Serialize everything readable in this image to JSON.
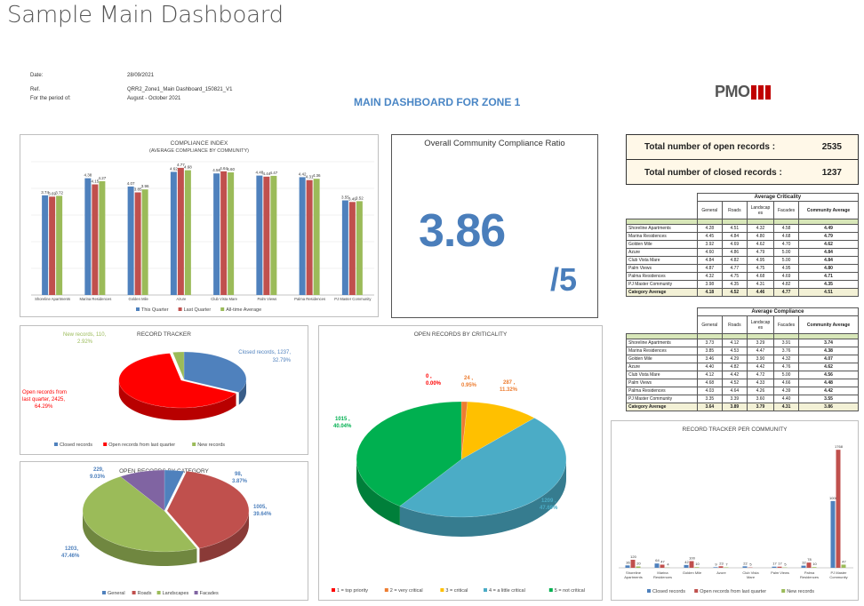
{
  "page_title": "Sample Main Dashboard",
  "meta": {
    "date_label": "Date:",
    "date_value": "28/09/2021",
    "ref_label": "Ref.",
    "ref_value": "QRR2_Zone1_Main Dashboard_150821_V1",
    "period_label": "For the period of:",
    "period_value": "August - October 2021"
  },
  "dashboard_heading": "MAIN DASHBOARD FOR ZONE 1",
  "logo_text": "PMO",
  "colors": {
    "blue": "#4f81bd",
    "red": "#c0504d",
    "green": "#9bbb59",
    "purple": "#8064a2",
    "bright_red": "#ff0000",
    "orange": "#ed7d31",
    "yellow": "#ffc000",
    "teal": "#4bacc6",
    "dark_green": "#00b050",
    "dark_red": "#c00000"
  },
  "ratio": {
    "title": "Overall Community Compliance Ratio",
    "value": "3.86",
    "denominator": "/5"
  },
  "totals": {
    "open_label": "Total number of open records :",
    "open_value": "2535",
    "closed_label": "Total number of closed records :",
    "closed_value": "1237"
  },
  "chart_data": [
    {
      "id": "compliance_index",
      "type": "bar",
      "title": "COMPLIANCE INDEX",
      "subtitle": "(AVERAGE COMPLIANCE BY COMMUNITY)",
      "categories": [
        "Shoreline Apartments",
        "Marina Residences",
        "Golden Mile",
        "Azure",
        "Club Vista Mare",
        "Palm Views",
        "Palma Residences",
        "PJ Master Community"
      ],
      "series": [
        {
          "name": "This Quarter",
          "values": [
            3.74,
            4.38,
            4.07,
            4.62,
            4.56,
            4.48,
            4.42,
            3.55
          ]
        },
        {
          "name": "Last Quarter",
          "values": [
            3.69,
            4.15,
            3.85,
            4.77,
            4.64,
            4.44,
            4.31,
            3.49
          ]
        },
        {
          "name": "All-time Average",
          "values": [
            3.72,
            4.27,
            3.96,
            4.68,
            4.6,
            4.47,
            4.36,
            3.52
          ]
        }
      ],
      "value_labels": [
        [
          "3.74",
          "4.38",
          "4.07",
          "4.62",
          "4.56",
          "4.48",
          "4.42",
          "3.55"
        ],
        [
          "3.69",
          "4.15",
          "3.85",
          "4.77",
          "4.64",
          "4.44",
          "4.31",
          "3.49"
        ],
        [
          "3.72",
          "4.27",
          "3.96",
          "4.68",
          "4.60",
          "4.47",
          "4.36",
          "3.52"
        ]
      ],
      "ylim": [
        0,
        5
      ],
      "grid": true,
      "legend": "bottom"
    },
    {
      "id": "record_tracker",
      "type": "pie",
      "title": "RECORD TRACKER",
      "labels": [
        "Closed records",
        "Open records from last quarter",
        "New records"
      ],
      "values": [
        1237,
        2425,
        110
      ],
      "percents": [
        "32.79%",
        "64.29%",
        "2.92%"
      ],
      "slice_labels": [
        "Closed records, 1237,",
        "Open records from last quarter, 2425,",
        "New records, 110,"
      ],
      "legend": "bottom"
    },
    {
      "id": "open_by_criticality",
      "type": "pie",
      "title": "OPEN RECORDS BY CRITICALITY",
      "labels": [
        "1 = top priority",
        "2 = very critical",
        "3 = critical",
        "4 = a little critical",
        "5 = not critical"
      ],
      "values": [
        0,
        24,
        287,
        1209,
        1015
      ],
      "percents": [
        "0.00%",
        "0.95%",
        "11.32%",
        "47.69%",
        "40.04%"
      ],
      "legend": "bottom"
    },
    {
      "id": "open_by_category",
      "type": "pie",
      "title": "OPEN RECORDS BY CATEGORY",
      "labels": [
        "General",
        "Roads",
        "Landscapes",
        "Facades"
      ],
      "values": [
        98,
        1005,
        1203,
        229
      ],
      "percents": [
        "3.87%",
        "39.64%",
        "47.46%",
        "9.03%"
      ],
      "legend": "bottom"
    },
    {
      "id": "tracker_per_community",
      "type": "bar",
      "title": "RECORD TRACKER PER COMMUNITY",
      "categories": [
        "Shoreline Apartments",
        "Marina Residences",
        "Golden Mile",
        "Azure",
        "Club Vista Mare",
        "Palm Views",
        "Palma Residences",
        "PJ Master Community"
      ],
      "category_lines": [
        [
          "Shoreline",
          "Apartments"
        ],
        [
          "Marina",
          "Residences"
        ],
        [
          "Golden Mile"
        ],
        [
          "Azure"
        ],
        [
          "Club Vista",
          "Mare"
        ],
        [
          "Palm Views"
        ],
        [
          "Palma",
          "Residences"
        ],
        [
          "PJ Master",
          "Community"
        ]
      ],
      "series": [
        {
          "name": "Closed records",
          "values": [
            36,
            64,
            42,
            9,
            22,
            17,
            32,
            1000
          ]
        },
        {
          "name": "Open records from last quarter",
          "values": [
            120,
            47,
            100,
            23,
            5,
            17,
            78,
            1768
          ]
        },
        {
          "name": "New records",
          "values": [
            20,
            4,
            10,
            7,
            0,
            5,
            10,
            47
          ]
        }
      ],
      "value_labels": [
        [
          "36",
          "64",
          "42",
          "9",
          "22",
          "17",
          "32",
          "1000"
        ],
        [
          "120",
          "47",
          "100",
          "23",
          "5",
          "17",
          "78",
          "1768"
        ],
        [
          "20",
          "4",
          "10",
          "7",
          "",
          "5",
          "10",
          "47"
        ]
      ],
      "legend": "bottom"
    }
  ],
  "criticality_table": {
    "title": "Average Criticality",
    "columns": [
      "General",
      "Roads",
      "Landscap es",
      "Facades",
      "Community Average"
    ],
    "rows": [
      {
        "name": "Shoreline Apartments",
        "values": [
          "4.28",
          "4.51",
          "4.32",
          "4.58",
          "4.49"
        ]
      },
      {
        "name": "Marina Residences",
        "values": [
          "4.45",
          "4.84",
          "4.80",
          "4.68",
          "4.79"
        ]
      },
      {
        "name": "Golden Mile",
        "values": [
          "3.92",
          "4.69",
          "4.62",
          "4.70",
          "4.62"
        ]
      },
      {
        "name": "Azure",
        "values": [
          "4.60",
          "4.86",
          "4.79",
          "5.00",
          "4.84"
        ]
      },
      {
        "name": "Club Vista Mare",
        "values": [
          "4.84",
          "4.82",
          "4.95",
          "5.00",
          "4.84"
        ]
      },
      {
        "name": "Palm Views",
        "values": [
          "4.87",
          "4.77",
          "4.75",
          "4.95",
          "4.80"
        ]
      },
      {
        "name": "Palma Residences",
        "values": [
          "4.32",
          "4.75",
          "4.68",
          "4.69",
          "4.71"
        ]
      },
      {
        "name": "PJ Master Community",
        "values": [
          "3.98",
          "4.35",
          "4.31",
          "4.82",
          "4.35"
        ]
      }
    ],
    "category_avg": {
      "name": "Category Average",
      "values": [
        "4.18",
        "4.52",
        "4.46",
        "4.77",
        "4.51"
      ]
    }
  },
  "compliance_table": {
    "title": "Average Compliance",
    "columns": [
      "General",
      "Roads",
      "Landscap es",
      "Facades",
      "Community Average"
    ],
    "rows": [
      {
        "name": "Shoreline Apartments",
        "values": [
          "3.73",
          "4.12",
          "3.29",
          "3.91",
          "3.74"
        ]
      },
      {
        "name": "Marina Residences",
        "values": [
          "3.85",
          "4.53",
          "4.47",
          "3.76",
          "4.38"
        ]
      },
      {
        "name": "Golden Mile",
        "values": [
          "3.46",
          "4.29",
          "3.90",
          "4.32",
          "4.07"
        ]
      },
      {
        "name": "Azure",
        "values": [
          "4.40",
          "4.82",
          "4.42",
          "4.76",
          "4.62"
        ]
      },
      {
        "name": "Club Vista Mare",
        "values": [
          "4.12",
          "4.42",
          "4.72",
          "5.00",
          "4.56"
        ]
      },
      {
        "name": "Palm Views",
        "values": [
          "4.68",
          "4.52",
          "4.33",
          "4.66",
          "4.48"
        ]
      },
      {
        "name": "Palma Residences",
        "values": [
          "4.03",
          "4.64",
          "4.26",
          "4.39",
          "4.42"
        ]
      },
      {
        "name": "PJ Master Community",
        "values": [
          "3.35",
          "3.39",
          "3.60",
          "4.40",
          "3.55"
        ]
      }
    ],
    "category_avg": {
      "name": "Category Average",
      "values": [
        "3.64",
        "3.89",
        "3.79",
        "4.31",
        "3.86"
      ]
    }
  }
}
